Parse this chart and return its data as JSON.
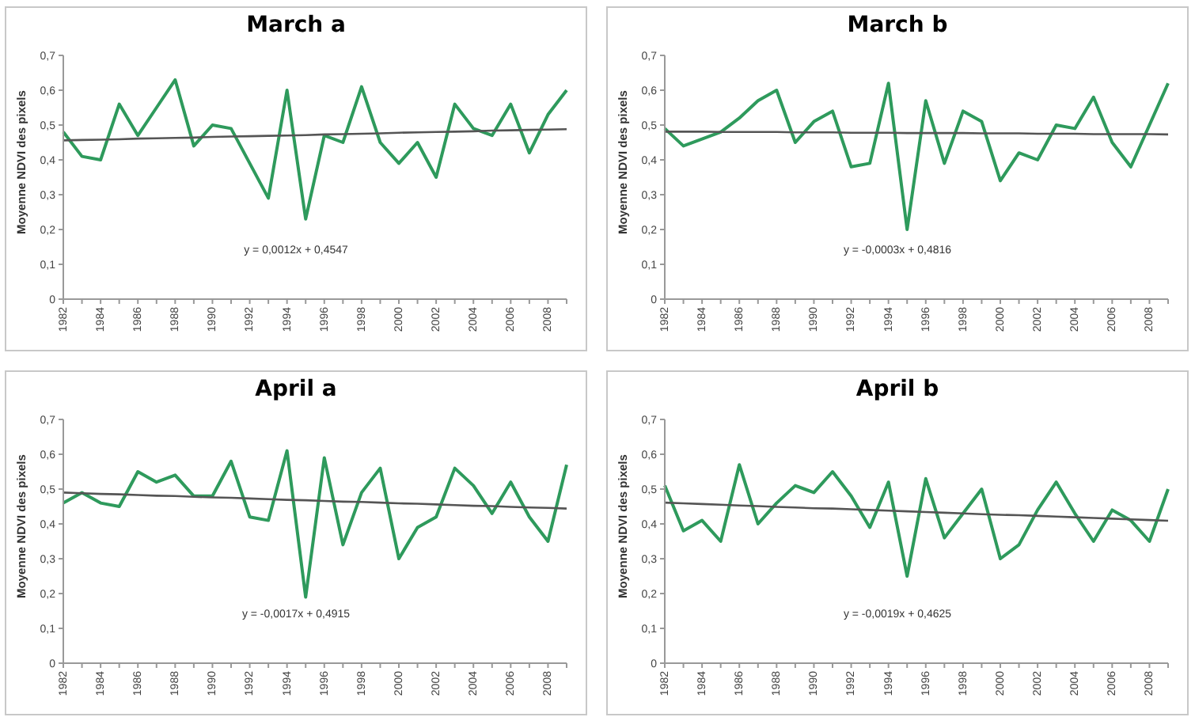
{
  "chart_data": [
    {
      "type": "line",
      "title": "March a",
      "ylabel": "Moyenne NDVI des pixels",
      "categories": [
        "1982",
        null,
        "1984",
        null,
        "1986",
        null,
        "1988",
        null,
        "1990",
        null,
        "1992",
        null,
        "1994",
        null,
        "1996",
        null,
        "1998",
        null,
        "2000",
        null,
        "2002",
        null,
        "2004",
        null,
        "2006",
        null,
        "2008",
        null
      ],
      "series": [
        {
          "color": "#2e9a5c",
          "values": [
            0.48,
            0.41,
            0.4,
            0.56,
            0.47,
            0.55,
            0.63,
            0.44,
            0.5,
            0.49,
            0.39,
            0.29,
            0.6,
            0.23,
            0.47,
            0.45,
            0.61,
            0.45,
            0.39,
            0.45,
            0.35,
            0.56,
            0.49,
            0.47,
            0.56,
            0.42,
            0.53,
            0.6
          ]
        },
        {
          "type": "line",
          "color": "#555555",
          "values": [
            0.456,
            0.457,
            0.458,
            0.459,
            0.461,
            0.462,
            0.463,
            0.464,
            0.466,
            0.467,
            0.468,
            0.469,
            0.47,
            0.471,
            0.473,
            0.474,
            0.475,
            0.476,
            0.478,
            0.479,
            0.48,
            0.481,
            0.482,
            0.484,
            0.485,
            0.486,
            0.487,
            0.488
          ]
        }
      ],
      "ylim": [
        0,
        0.7
      ],
      "yticks": [
        {
          "value": 0,
          "label": "0"
        },
        {
          "value": 0.1,
          "label": "0,1"
        },
        {
          "value": 0.2,
          "label": "0,2"
        },
        {
          "value": 0.3,
          "label": "0,3"
        },
        {
          "value": 0.4,
          "label": "0,4"
        },
        {
          "value": 0.5,
          "label": "0,5"
        },
        {
          "value": 0.6,
          "label": "0,6"
        },
        {
          "value": 0.7,
          "label": "0,7"
        }
      ],
      "annotations": [
        "y = 0,0012x + 0,4547"
      ],
      "grid": false,
      "marker": "none",
      "line_style": "solid"
    },
    {
      "type": "line",
      "title": "March b",
      "ylabel": "Moyenne NDVI des pixels",
      "categories": [
        "1982",
        null,
        "1984",
        null,
        "1986",
        null,
        "1988",
        null,
        "1990",
        null,
        "1992",
        null,
        "1994",
        null,
        "1996",
        null,
        "1998",
        null,
        "2000",
        null,
        "2002",
        null,
        "2004",
        null,
        "2006",
        null,
        "2008",
        null
      ],
      "series": [
        {
          "color": "#2e9a5c",
          "values": [
            0.49,
            0.44,
            0.46,
            0.48,
            0.52,
            0.57,
            0.6,
            0.45,
            0.51,
            0.54,
            0.38,
            0.39,
            0.62,
            0.2,
            0.57,
            0.39,
            0.54,
            0.51,
            0.34,
            0.42,
            0.4,
            0.5,
            0.49,
            0.58,
            0.45,
            0.38,
            0.5,
            0.62
          ]
        },
        {
          "type": "line",
          "color": "#555555",
          "values": [
            0.481,
            0.481,
            0.481,
            0.48,
            0.48,
            0.48,
            0.48,
            0.479,
            0.479,
            0.479,
            0.478,
            0.478,
            0.478,
            0.477,
            0.477,
            0.477,
            0.477,
            0.476,
            0.476,
            0.476,
            0.475,
            0.475,
            0.475,
            0.474,
            0.474,
            0.474,
            0.474,
            0.473
          ]
        }
      ],
      "ylim": [
        0,
        0.7
      ],
      "yticks": [
        {
          "value": 0,
          "label": "0"
        },
        {
          "value": 0.1,
          "label": "0,1"
        },
        {
          "value": 0.2,
          "label": "0,2"
        },
        {
          "value": 0.3,
          "label": "0,3"
        },
        {
          "value": 0.4,
          "label": "0,4"
        },
        {
          "value": 0.5,
          "label": "0,5"
        },
        {
          "value": 0.6,
          "label": "0,6"
        },
        {
          "value": 0.7,
          "label": "0,7"
        }
      ],
      "annotations": [
        "y = -0,0003x + 0,4816"
      ],
      "grid": false,
      "marker": "none",
      "line_style": "solid"
    },
    {
      "type": "line",
      "title": "April a",
      "ylabel": "Moyenne NDVI des pixels",
      "categories": [
        "1982",
        null,
        "1984",
        null,
        "1986",
        null,
        "1988",
        null,
        "1990",
        null,
        "1992",
        null,
        "1994",
        null,
        "1996",
        null,
        "1998",
        null,
        "2000",
        null,
        "2002",
        null,
        "2004",
        null,
        "2006",
        null,
        "2008",
        null
      ],
      "series": [
        {
          "color": "#2e9a5c",
          "values": [
            0.46,
            0.49,
            0.46,
            0.45,
            0.55,
            0.52,
            0.54,
            0.48,
            0.48,
            0.58,
            0.42,
            0.41,
            0.61,
            0.19,
            0.59,
            0.34,
            0.49,
            0.56,
            0.3,
            0.39,
            0.42,
            0.56,
            0.51,
            0.43,
            0.52,
            0.42,
            0.35,
            0.57
          ]
        },
        {
          "type": "line",
          "color": "#555555",
          "values": [
            0.49,
            0.488,
            0.486,
            0.485,
            0.483,
            0.481,
            0.48,
            0.478,
            0.476,
            0.475,
            0.473,
            0.471,
            0.469,
            0.468,
            0.466,
            0.464,
            0.463,
            0.461,
            0.459,
            0.458,
            0.456,
            0.454,
            0.452,
            0.451,
            0.449,
            0.447,
            0.446,
            0.444
          ]
        }
      ],
      "ylim": [
        0,
        0.7
      ],
      "yticks": [
        {
          "value": 0,
          "label": "0"
        },
        {
          "value": 0.1,
          "label": "0,1"
        },
        {
          "value": 0.2,
          "label": "0,2"
        },
        {
          "value": 0.3,
          "label": "0,3"
        },
        {
          "value": 0.4,
          "label": "0,4"
        },
        {
          "value": 0.5,
          "label": "0,5"
        },
        {
          "value": 0.6,
          "label": "0,6"
        },
        {
          "value": 0.7,
          "label": "0,7"
        }
      ],
      "annotations": [
        "y = -0,0017x + 0,4915"
      ],
      "grid": false,
      "marker": "none",
      "line_style": "solid"
    },
    {
      "type": "line",
      "title": "April b",
      "ylabel": "Moyenne NDVI des pixels",
      "categories": [
        "1982",
        null,
        "1984",
        null,
        "1986",
        null,
        "1988",
        null,
        "1990",
        null,
        "1992",
        null,
        "1994",
        null,
        "1996",
        null,
        "1998",
        null,
        "2000",
        null,
        "2002",
        null,
        "2004",
        null,
        "2006",
        null,
        "2008",
        null
      ],
      "series": [
        {
          "color": "#2e9a5c",
          "values": [
            0.51,
            0.38,
            0.41,
            0.35,
            0.57,
            0.4,
            0.46,
            0.51,
            0.49,
            0.55,
            0.48,
            0.39,
            0.52,
            0.25,
            0.53,
            0.36,
            0.43,
            0.5,
            0.3,
            0.34,
            0.44,
            0.52,
            0.43,
            0.35,
            0.44,
            0.41,
            0.35,
            0.5
          ]
        },
        {
          "type": "line",
          "color": "#555555",
          "values": [
            0.461,
            0.459,
            0.457,
            0.455,
            0.453,
            0.451,
            0.449,
            0.447,
            0.445,
            0.444,
            0.442,
            0.44,
            0.438,
            0.436,
            0.434,
            0.432,
            0.43,
            0.428,
            0.426,
            0.425,
            0.423,
            0.421,
            0.419,
            0.417,
            0.415,
            0.413,
            0.411,
            0.409
          ]
        }
      ],
      "ylim": [
        0,
        0.7
      ],
      "yticks": [
        {
          "value": 0,
          "label": "0"
        },
        {
          "value": 0.1,
          "label": "0,1"
        },
        {
          "value": 0.2,
          "label": "0,2"
        },
        {
          "value": 0.3,
          "label": "0,3"
        },
        {
          "value": 0.4,
          "label": "0,4"
        },
        {
          "value": 0.5,
          "label": "0,5"
        },
        {
          "value": 0.6,
          "label": "0,6"
        },
        {
          "value": 0.7,
          "label": "0,7"
        }
      ],
      "annotations": [
        "y = -0,0019x + 0,4625"
      ],
      "grid": false,
      "marker": "none",
      "line_style": "solid"
    }
  ]
}
